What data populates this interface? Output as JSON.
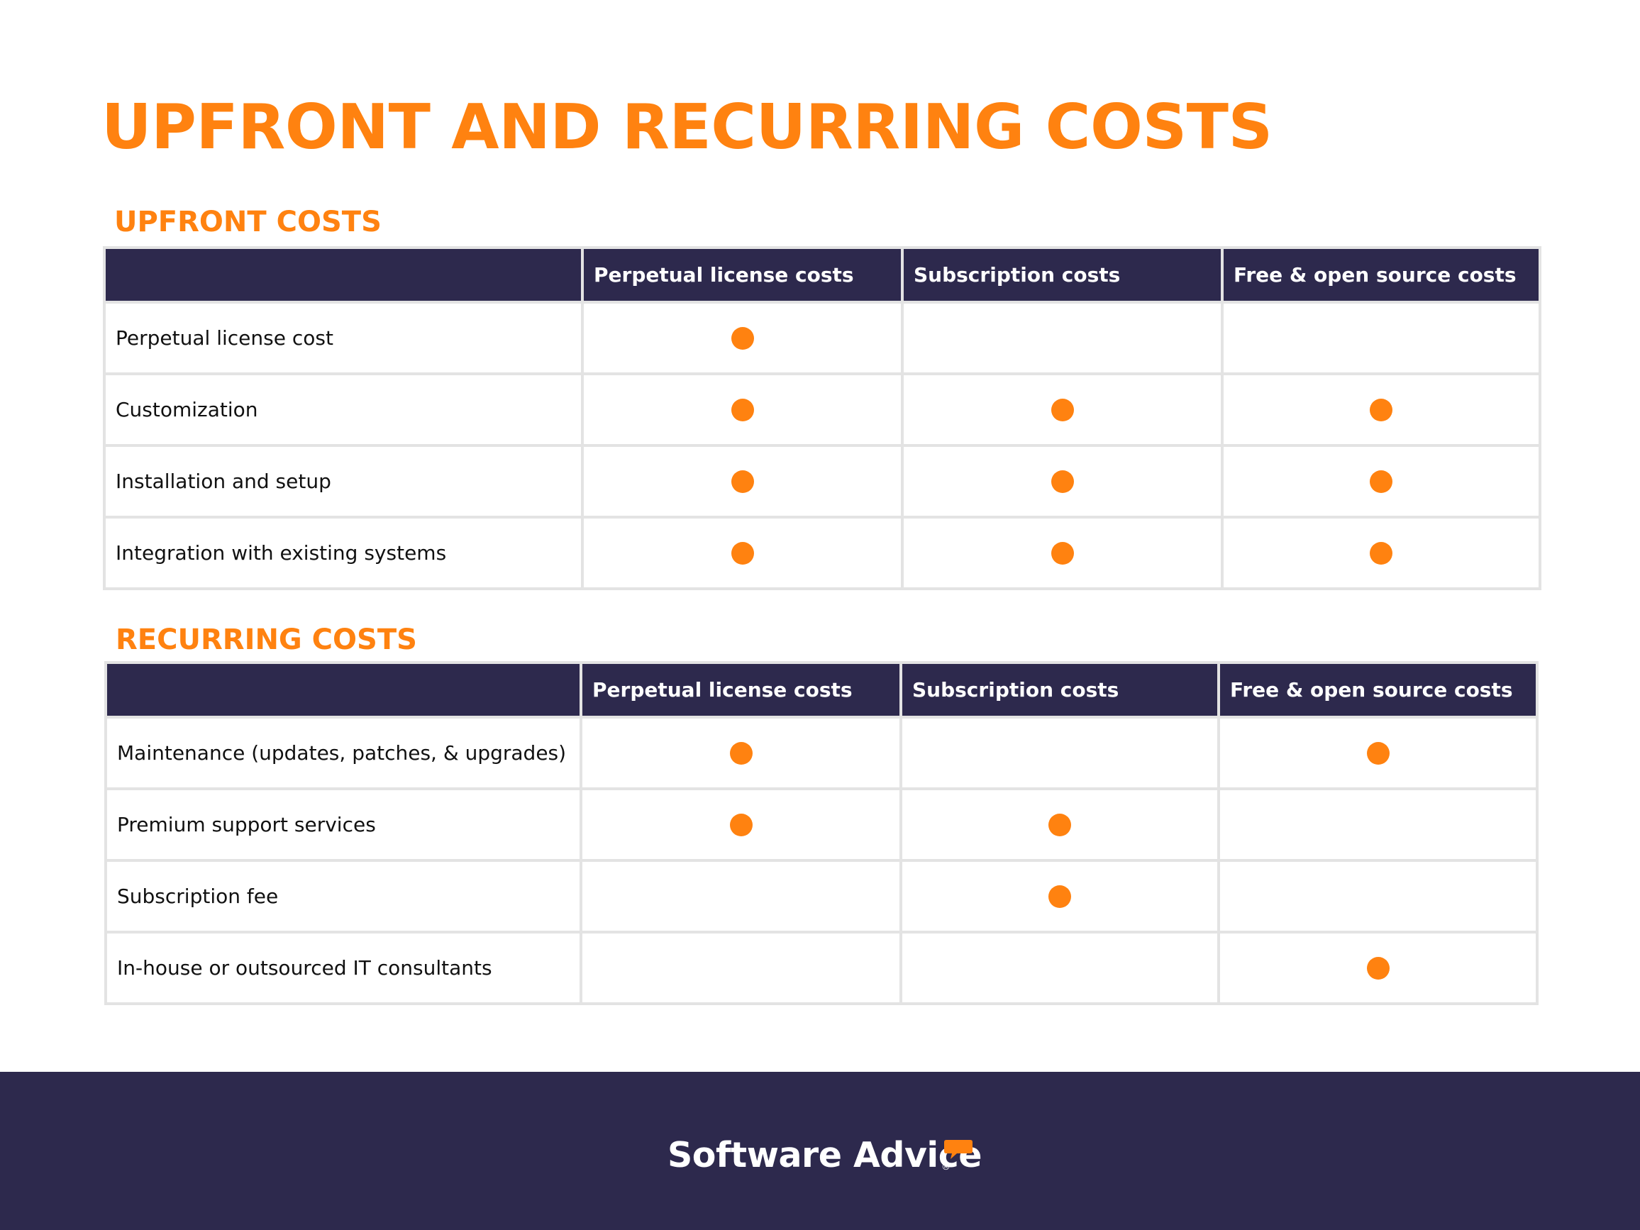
{
  "title": "UPFRONT AND RECURRING COSTS",
  "columns": [
    "",
    "Perpetual license costs",
    "Subscription costs",
    "Free & open source costs"
  ],
  "upfront": {
    "title": "UPFRONT COSTS",
    "rows": [
      {
        "label": "Perpetual license cost",
        "marks": [
          true,
          false,
          false
        ]
      },
      {
        "label": "Customization",
        "marks": [
          true,
          true,
          true
        ]
      },
      {
        "label": "Installation and setup",
        "marks": [
          true,
          true,
          true
        ]
      },
      {
        "label": "Integration with existing systems",
        "marks": [
          true,
          true,
          true
        ]
      }
    ]
  },
  "recurring": {
    "title": "RECURRING COSTS",
    "rows": [
      {
        "label": "Maintenance (updates, patches, & upgrades)",
        "marks": [
          true,
          false,
          true
        ]
      },
      {
        "label": "Premium support services",
        "marks": [
          true,
          true,
          false
        ]
      },
      {
        "label": "Subscription fee",
        "marks": [
          false,
          true,
          false
        ]
      },
      {
        "label": "In-house or outsourced IT consultants",
        "marks": [
          false,
          false,
          true
        ]
      }
    ]
  },
  "footer": {
    "brand": "Software Advice",
    "registered": "®",
    "logo_icon": "speech-bubble-icon"
  },
  "colors": {
    "accent": "#ff8210",
    "navy": "#2d294d",
    "border": "#e3e3e3"
  }
}
